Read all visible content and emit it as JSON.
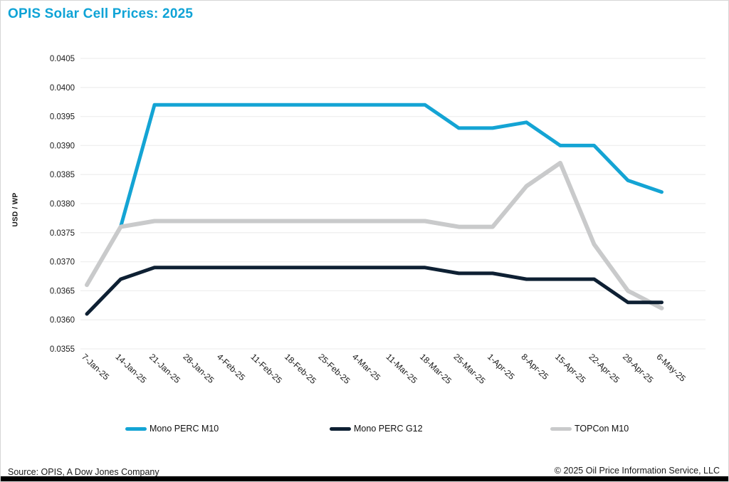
{
  "title": "OPIS Solar Cell Prices: 2025",
  "footer": {
    "source": "Source: OPIS, A Dow Jones Company",
    "copyright": "© 2025 Oil Price Information Service, LLC"
  },
  "colors": {
    "title": "#0fa3d6",
    "mono_perc_m10": "#14a4d4",
    "mono_perc_g12": "#0e2033",
    "topcon_m10": "#c9cacb",
    "gridline": "#efefef",
    "axis_text": "#1a1a1a",
    "bottom_bar": "#000000"
  },
  "chart_data": {
    "type": "line",
    "title": "OPIS Solar Cell Prices: 2025",
    "xlabel": "",
    "ylabel": "USD / WP",
    "ylim": [
      0.0355,
      0.0405
    ],
    "ytick_step": 0.0005,
    "grid": "horizontal",
    "legend_position": "bottom",
    "categories": [
      "7-Jan-25",
      "14-Jan-25",
      "21-Jan-25",
      "28-Jan-25",
      "4-Feb-25",
      "11-Feb-25",
      "18-Feb-25",
      "25-Feb-25",
      "4-Mar-25",
      "11-Mar-25",
      "18-Mar-25",
      "25-Mar-25",
      "1-Apr-25",
      "8-Apr-25",
      "15-Apr-25",
      "22-Apr-25",
      "29-Apr-25",
      "6-May-25"
    ],
    "series": [
      {
        "name": "Mono PERC M10",
        "color": "#14a4d4",
        "values": [
          0.0366,
          0.0376,
          0.0397,
          0.0397,
          0.0397,
          0.0397,
          0.0397,
          0.0397,
          0.0397,
          0.0397,
          0.0397,
          0.0393,
          0.0393,
          0.0394,
          0.039,
          0.039,
          0.0384,
          0.0382
        ]
      },
      {
        "name": "Mono PERC G12",
        "color": "#0e2033",
        "values": [
          0.0361,
          0.0367,
          0.0369,
          0.0369,
          0.0369,
          0.0369,
          0.0369,
          0.0369,
          0.0369,
          0.0369,
          0.0369,
          0.0368,
          0.0368,
          0.0367,
          0.0367,
          0.0367,
          0.0363,
          0.0363
        ]
      },
      {
        "name": "TOPCon M10",
        "color": "#c9cacb",
        "values": [
          0.0366,
          0.0376,
          0.0377,
          0.0377,
          0.0377,
          0.0377,
          0.0377,
          0.0377,
          0.0377,
          0.0377,
          0.0377,
          0.0376,
          0.0376,
          0.0383,
          0.0387,
          0.0373,
          0.0365,
          0.0362
        ]
      }
    ]
  }
}
